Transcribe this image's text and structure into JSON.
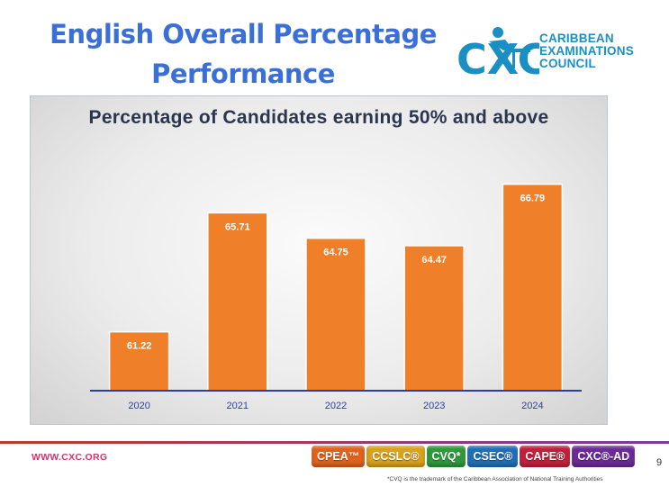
{
  "slide": {
    "title_line1": "English Overall Percentage",
    "title_line2": "Performance"
  },
  "logo": {
    "mark": "CXC",
    "lines": [
      "CARIBBEAN",
      "EXAMINATIONS",
      "COUNCIL"
    ],
    "color": "#1a8fc4"
  },
  "chart_data": {
    "type": "bar",
    "title": "Percentage of Candidates earning 50% and above",
    "categories": [
      "2020",
      "2021",
      "2022",
      "2023",
      "2024"
    ],
    "values": [
      61.22,
      65.71,
      64.75,
      64.47,
      66.79
    ],
    "value_labels": [
      "61.22",
      "65.71",
      "64.75",
      "64.47",
      "66.79"
    ],
    "ylim": [
      59,
      68
    ],
    "xlabel": "",
    "ylabel": "",
    "grid": false,
    "bar_color": "#f07f2a",
    "axis_color": "#2b3fa0"
  },
  "footer": {
    "url": "WWW.CXC.ORG",
    "badges": [
      {
        "label": "CPEA™",
        "color": "#e2621c"
      },
      {
        "label": "CCSLC®",
        "color": "#d9a21a"
      },
      {
        "label": "CVQ*",
        "color": "#2e9a3a"
      },
      {
        "label": "CSEC®",
        "color": "#1f6fb8"
      },
      {
        "label": "CAPE®",
        "color": "#c41f3a"
      },
      {
        "label": "CXC®-AD",
        "color": "#6c2a98"
      }
    ],
    "page_number": "9",
    "trademark": "*CVQ is the trademark of the Caribbean Association of National Training Authorities"
  }
}
